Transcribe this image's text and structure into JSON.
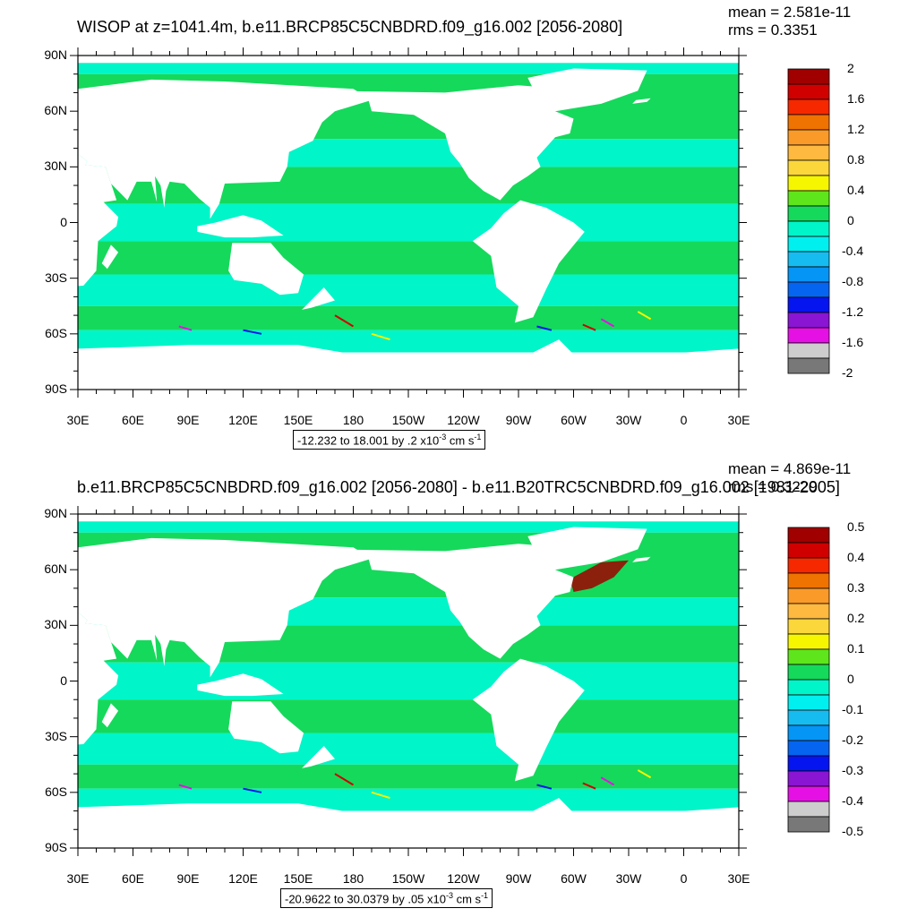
{
  "chart_data": [
    {
      "type": "heatmap",
      "title": "WISOP at z=1041.4m, b.e11.BRCP85C5CNBDRD.f09_g16.002 [2056-2080]",
      "mean_text": "mean = 2.581e-11",
      "rms_text": "rms = 0.3351",
      "xticks": [
        "30E",
        "60E",
        "90E",
        "120E",
        "150E",
        "180",
        "150W",
        "120W",
        "90W",
        "60W",
        "30W",
        "0",
        "30E"
      ],
      "yticks": [
        "90N",
        "60N",
        "30N",
        "0",
        "30S",
        "60S",
        "90S"
      ],
      "range": {
        "text": "-12.232 to 18.001 by .2 x10",
        "exp": "-3",
        "unit": " cm s",
        "unit_exp": "-1"
      },
      "colorbar": {
        "labels": [
          "2",
          "1.6",
          "1.2",
          "0.8",
          "0.4",
          "0",
          "-0.4",
          "-0.8",
          "-1.2",
          "-1.6",
          "-2"
        ],
        "colors": [
          "#a00000",
          "#d00000",
          "#f52800",
          "#ee7300",
          "#fa9a28",
          "#fdb940",
          "#fcd73c",
          "#f6f600",
          "#5fe51b",
          "#15d95b",
          "#00f5c8",
          "#00f0f0",
          "#16bcf0",
          "#0595f5",
          "#0565f0",
          "#0515f0",
          "#8a15d2",
          "#e511e4",
          "#cdcdcd",
          "#787878"
        ]
      }
    },
    {
      "type": "heatmap",
      "title": "b.e11.BRCP85C5CNBDRD.f09_g16.002 [2056-2080] - b.e11.B20TRC5CNBDRD.f09_g16.002 [1981-2005]",
      "mean_text": "mean = 4.869e-11",
      "rms_text": "rms = 0.3229",
      "xticks": [
        "30E",
        "60E",
        "90E",
        "120E",
        "150E",
        "180",
        "150W",
        "120W",
        "90W",
        "60W",
        "30W",
        "0",
        "30E"
      ],
      "yticks": [
        "90N",
        "60N",
        "30N",
        "0",
        "30S",
        "60S",
        "90S"
      ],
      "range": {
        "text": "-20.9622 to 30.0379 by .05 x10",
        "exp": "-3",
        "unit": " cm s",
        "unit_exp": "-1"
      },
      "colorbar": {
        "labels": [
          "0.5",
          "0.4",
          "0.3",
          "0.2",
          "0.1",
          "0",
          "-0.1",
          "-0.2",
          "-0.3",
          "-0.4",
          "-0.5"
        ],
        "colors": [
          "#a00000",
          "#d00000",
          "#f52800",
          "#ee7300",
          "#fa9a28",
          "#fdb940",
          "#fcd73c",
          "#f6f600",
          "#5fe51b",
          "#15d95b",
          "#00f5c8",
          "#00f0f0",
          "#16bcf0",
          "#0595f5",
          "#0565f0",
          "#0515f0",
          "#8a15d2",
          "#e511e4",
          "#cdcdcd",
          "#787878"
        ]
      }
    }
  ]
}
